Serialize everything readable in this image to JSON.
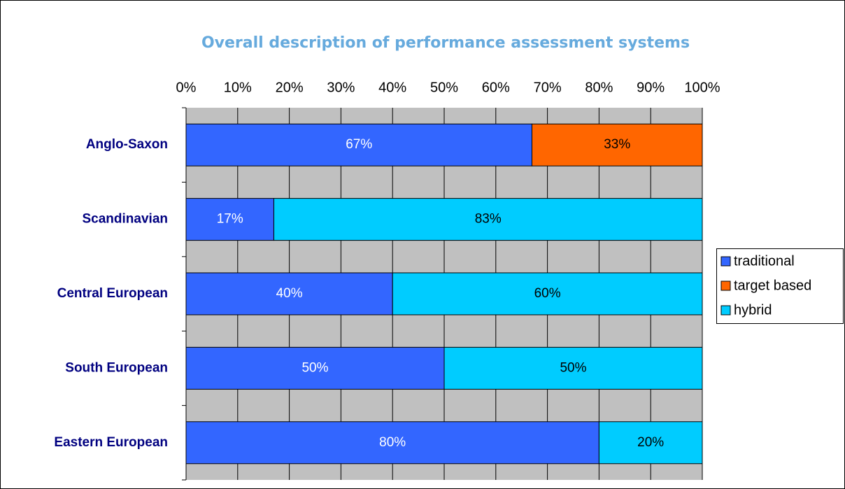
{
  "chart_data": {
    "type": "stacked_barh",
    "title": "Overall description of performance assessment systems",
    "categories": [
      "Anglo-Saxon",
      "Scandinavian",
      "Central European",
      "South European",
      "Eastern European"
    ],
    "series": [
      {
        "name": "traditional",
        "color": "#3366ff",
        "label_color": "#ffffff",
        "values": [
          67,
          17,
          40,
          50,
          80
        ],
        "value_labels": [
          "67%",
          "17%",
          "40%",
          "50%",
          "80%"
        ]
      },
      {
        "name": "target based",
        "color": "#ff6600",
        "label_color": "#000000",
        "values": [
          33,
          null,
          null,
          null,
          null
        ],
        "value_labels": [
          "33%",
          null,
          null,
          null,
          null
        ]
      },
      {
        "name": "hybrid",
        "color": "#00ccff",
        "label_color": "#000000",
        "values": [
          null,
          83,
          60,
          50,
          20
        ],
        "value_labels": [
          null,
          "83%",
          "60%",
          "50%",
          "20%"
        ]
      }
    ],
    "xlim": [
      0,
      100
    ],
    "xticks": [
      {
        "value": 0,
        "label": "0%"
      },
      {
        "value": 10,
        "label": "10%"
      },
      {
        "value": 20,
        "label": "20%"
      },
      {
        "value": 30,
        "label": "30%"
      },
      {
        "value": 40,
        "label": "40%"
      },
      {
        "value": 50,
        "label": "50%"
      },
      {
        "value": 60,
        "label": "60%"
      },
      {
        "value": 70,
        "label": "70%"
      },
      {
        "value": 80,
        "label": "80%"
      },
      {
        "value": 90,
        "label": "90%"
      },
      {
        "value": 100,
        "label": "100%"
      }
    ],
    "grid": true,
    "legend": "right"
  }
}
